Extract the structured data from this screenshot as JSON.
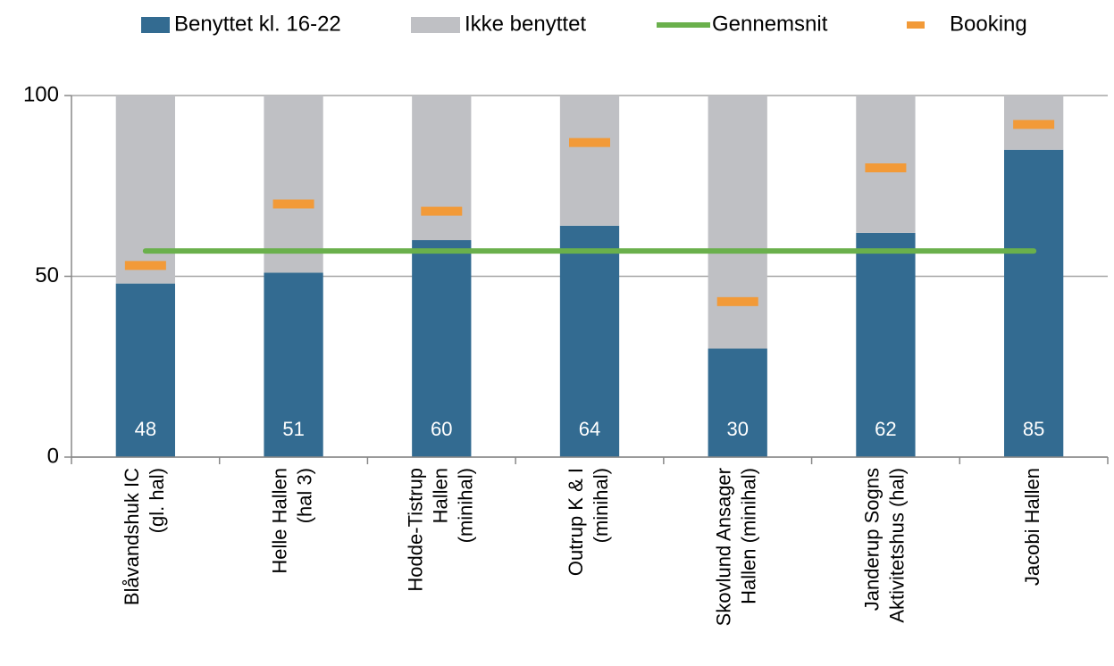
{
  "chart_data": {
    "type": "bar",
    "stacked": true,
    "categories": [
      "Blåvandshuk IC\n(gl. hal)",
      "Helle Hallen\n(hal 3)",
      "Hodde-Tistrup\nHallen\n(minihal)",
      "Outrup K & I\n(minihal)",
      "Skovlund Ansager\nHallen (minihal)",
      "Janderup Sogns\nAktivitetshus (hal)",
      "Jacobi Hallen"
    ],
    "series": [
      {
        "name": "Benyttet kl. 16-22",
        "type": "bar",
        "color": "#336b91",
        "values": [
          48,
          51,
          60,
          64,
          30,
          62,
          85
        ],
        "data_labels": true
      },
      {
        "name": "Ikke benyttet",
        "type": "bar",
        "color": "#bfc0c4",
        "values": [
          52,
          49,
          40,
          36,
          70,
          38,
          15
        ]
      },
      {
        "name": "Gennemsnit",
        "type": "line",
        "color": "#6ab04c",
        "values": [
          57,
          57,
          57,
          57,
          57,
          57,
          57
        ]
      },
      {
        "name": "Booking",
        "type": "marker",
        "color": "#f29a38",
        "values": [
          53,
          70,
          68,
          87,
          43,
          80,
          92
        ]
      }
    ],
    "ylim": [
      0,
      100
    ],
    "yticks": [
      0,
      50,
      100
    ],
    "grid": true,
    "legend": "top"
  }
}
